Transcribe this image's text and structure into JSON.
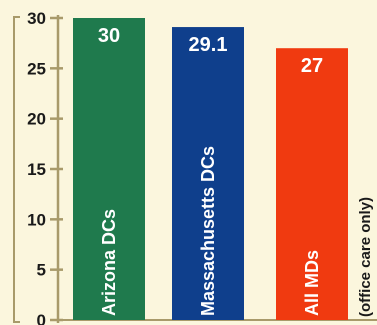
{
  "chart_data": {
    "type": "bar",
    "categories": [
      "Arizona DCs",
      "Massachusetts DCs",
      "All MDs"
    ],
    "values": [
      30,
      29.1,
      27
    ],
    "value_labels": [
      "30",
      "29.1",
      "27"
    ],
    "category_notes": [
      "",
      "",
      "(office care only)"
    ],
    "ylim": [
      0,
      30
    ],
    "yticks": [
      0,
      5,
      10,
      15,
      20,
      25,
      30
    ],
    "grid": false,
    "colors": {
      "bars": [
        "#1f7a4d",
        "#0f3f8c",
        "#f03a10"
      ],
      "axis": "#a89a6a",
      "background": "#fbf6dd"
    }
  }
}
